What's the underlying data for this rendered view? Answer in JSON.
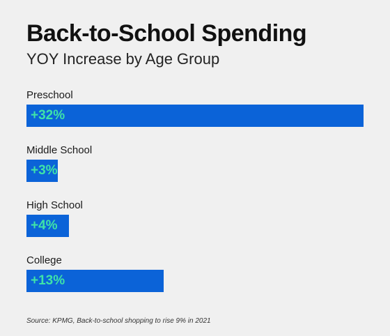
{
  "chart_data": {
    "type": "bar",
    "orientation": "horizontal",
    "title": "Back-to-School Spending",
    "subtitle": "YOY Increase by Age Group",
    "categories": [
      "Preschool",
      "Middle School",
      "High School",
      "College"
    ],
    "values": [
      32,
      3,
      4,
      13
    ],
    "value_labels": [
      "+32%",
      "+3%",
      "+4%",
      "+13%"
    ],
    "unit": "%",
    "xlim": [
      0,
      32
    ],
    "grid": false,
    "legend": "none",
    "source": "Source: KPMG, Back-to-school shopping to rise 9% in 2021"
  },
  "colors": {
    "bar": "#0b63d8",
    "bar_label": "#3fe3a8",
    "background": "#f0f0f0",
    "text": "#111111"
  }
}
